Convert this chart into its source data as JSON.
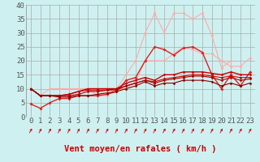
{
  "xlabel": "Vent moyen/en rafales ( km/h )",
  "xlim": [
    -0.5,
    23.5
  ],
  "ylim": [
    0,
    40
  ],
  "yticks": [
    0,
    5,
    10,
    15,
    20,
    25,
    30,
    35,
    40
  ],
  "xticks": [
    0,
    1,
    2,
    3,
    4,
    5,
    6,
    7,
    8,
    9,
    10,
    11,
    12,
    13,
    14,
    15,
    16,
    17,
    18,
    19,
    20,
    21,
    22,
    23
  ],
  "background_color": "#cff0f0",
  "grid_color": "#aaaaaa",
  "series": [
    {
      "x": [
        0,
        1,
        2,
        3,
        4,
        5,
        6,
        7,
        8,
        9,
        10,
        11,
        12,
        13,
        14,
        15,
        16,
        17,
        18,
        19,
        20,
        21
      ],
      "y": [
        10,
        7.5,
        10,
        10,
        10,
        10,
        10,
        7.5,
        10,
        10,
        15,
        20,
        30,
        37,
        30,
        37,
        37,
        35,
        37,
        29,
        17.5,
        20
      ],
      "color": "#ffaaaa",
      "lw": 0.8,
      "marker": "D",
      "ms": 2.0
    },
    {
      "x": [
        0,
        1,
        2,
        3,
        4,
        5,
        6,
        7,
        8,
        9,
        10,
        11,
        12,
        13,
        14,
        15,
        16,
        17,
        18,
        19,
        20,
        21,
        22,
        23
      ],
      "y": [
        10,
        7.5,
        7.5,
        7.5,
        7.5,
        7.5,
        7.5,
        7.5,
        7.5,
        10,
        10,
        12.5,
        20,
        20,
        20,
        22.5,
        25,
        24,
        22.5,
        22.5,
        20,
        18,
        18,
        21
      ],
      "color": "#ffaaaa",
      "lw": 0.8,
      "marker": "D",
      "ms": 2.0
    },
    {
      "x": [
        0,
        1,
        2,
        3,
        4,
        5,
        6,
        7,
        8,
        9,
        10,
        11,
        12,
        13,
        14,
        15,
        16,
        17,
        18,
        19,
        20,
        21,
        22,
        23
      ],
      "y": [
        4.5,
        3,
        5,
        6.5,
        6.5,
        7.5,
        7.5,
        7.5,
        8,
        9,
        13,
        14,
        20,
        25,
        24,
        22,
        24.5,
        25,
        23,
        15,
        10,
        15,
        11,
        16
      ],
      "color": "#dd2222",
      "lw": 1.0,
      "marker": "D",
      "ms": 2.0
    },
    {
      "x": [
        0,
        1,
        2,
        3,
        4,
        5,
        6,
        7,
        8,
        9,
        10,
        11,
        12,
        13,
        14,
        15,
        16,
        17,
        18,
        19,
        20,
        21,
        22,
        23
      ],
      "y": [
        10,
        7.5,
        7.5,
        7.5,
        8,
        9,
        10,
        10,
        10,
        10,
        12,
        13,
        14,
        13,
        15,
        15,
        16,
        16,
        16,
        15.5,
        15,
        16,
        15,
        15
      ],
      "color": "#cc0000",
      "lw": 1.0,
      "marker": "D",
      "ms": 1.8
    },
    {
      "x": [
        0,
        1,
        2,
        3,
        4,
        5,
        6,
        7,
        8,
        9,
        10,
        11,
        12,
        13,
        14,
        15,
        16,
        17,
        18,
        19,
        20,
        21,
        22,
        23
      ],
      "y": [
        10,
        7.5,
        7.5,
        7.5,
        8,
        9,
        9.5,
        9.5,
        9.5,
        9.5,
        11,
        12,
        13,
        12.5,
        13.5,
        14,
        14.5,
        15,
        15,
        14.5,
        14,
        14.5,
        14,
        14
      ],
      "color": "#cc0000",
      "lw": 0.8,
      "marker": "D",
      "ms": 1.8
    },
    {
      "x": [
        0,
        1,
        2,
        3,
        4,
        5,
        6,
        7,
        8,
        9,
        10,
        11,
        12,
        13,
        14,
        15,
        16,
        17,
        18,
        19,
        20,
        21,
        22,
        23
      ],
      "y": [
        10,
        7.5,
        7.5,
        7.5,
        7.5,
        8,
        9,
        9,
        9.5,
        10,
        11,
        12,
        13,
        12,
        13,
        13.5,
        14,
        14.5,
        14.5,
        14,
        13,
        14,
        13,
        13.5
      ],
      "color": "#aa0000",
      "lw": 0.8,
      "marker": "D",
      "ms": 1.8
    },
    {
      "x": [
        0,
        1,
        2,
        3,
        4,
        5,
        6,
        7,
        8,
        9,
        10,
        11,
        12,
        13,
        14,
        15,
        16,
        17,
        18,
        19,
        20,
        21,
        22,
        23
      ],
      "y": [
        10,
        7.5,
        7.5,
        7,
        7,
        7.5,
        7.5,
        8,
        8.5,
        9,
        10,
        11,
        12.5,
        11,
        12,
        12,
        13,
        13,
        13,
        12.5,
        11,
        12,
        11,
        12
      ],
      "color": "#880000",
      "lw": 0.8,
      "marker": "D",
      "ms": 1.8
    }
  ],
  "arrow_color": "#cc0000",
  "xlabel_color": "#cc0000",
  "xlabel_fontsize": 7.5,
  "tick_fontsize": 6.5
}
